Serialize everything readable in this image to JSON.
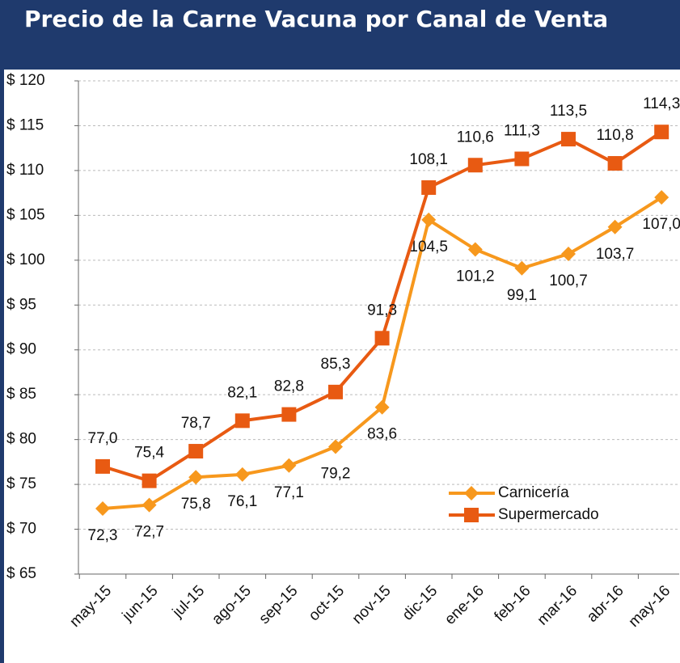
{
  "chart_data": {
    "type": "line",
    "title": "Precio de la Carne Vacuna por Canal de Venta",
    "categories": [
      "may-15",
      "jun-15",
      "jul-15",
      "ago-15",
      "sep-15",
      "oct-15",
      "nov-15",
      "dic-15",
      "ene-16",
      "feb-16",
      "mar-16",
      "abr-16",
      "may-16"
    ],
    "series": [
      {
        "name": "Carnicería",
        "color": "#f7981d",
        "marker": "diamond",
        "values": [
          72.3,
          72.7,
          75.8,
          76.1,
          77.1,
          79.2,
          83.6,
          104.5,
          101.2,
          99.1,
          100.7,
          103.7,
          107.0
        ],
        "value_labels": [
          "72,3",
          "72,7",
          "75,8",
          "76,1",
          "77,1",
          "79,2",
          "83,6",
          "104,5",
          "101,2",
          "99,1",
          "100,7",
          "103,7",
          "107,0"
        ]
      },
      {
        "name": "Supermercado",
        "color": "#e85a12",
        "marker": "square",
        "values": [
          77.0,
          75.4,
          78.7,
          82.1,
          82.8,
          85.3,
          91.3,
          108.1,
          110.6,
          111.3,
          113.5,
          110.8,
          114.3
        ],
        "value_labels": [
          "77,0",
          "75,4",
          "78,7",
          "82,1",
          "82,8",
          "85,3",
          "91,3",
          "108,1",
          "110,6",
          "111,3",
          "113,5",
          "110,8",
          "114,3"
        ]
      }
    ],
    "ylim": [
      65,
      120
    ],
    "yticks": [
      {
        "value": 65,
        "label": "$ 65"
      },
      {
        "value": 70,
        "label": "$ 70"
      },
      {
        "value": 75,
        "label": "$ 75"
      },
      {
        "value": 80,
        "label": "$ 80"
      },
      {
        "value": 85,
        "label": "$ 85"
      },
      {
        "value": 90,
        "label": "$ 90"
      },
      {
        "value": 95,
        "label": "$ 95"
      },
      {
        "value": 100,
        "label": "$ 100"
      },
      {
        "value": 105,
        "label": "$ 105"
      },
      {
        "value": 110,
        "label": "$ 110"
      },
      {
        "value": 115,
        "label": "$ 115"
      },
      {
        "value": 120,
        "label": "$ 120"
      }
    ],
    "grid": true,
    "legend": "lower right"
  }
}
